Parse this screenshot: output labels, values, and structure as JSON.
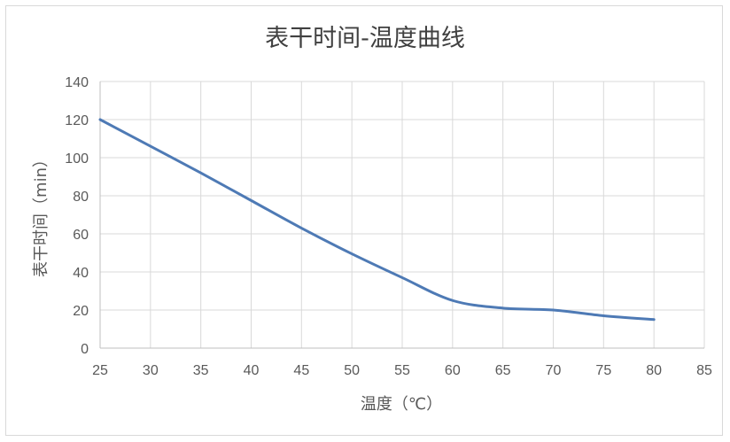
{
  "chart_data": {
    "type": "line",
    "title": "表干时间-温度曲线",
    "xlabel": "温度（℃）",
    "ylabel": "表干时间（min）",
    "xlim": [
      25,
      85
    ],
    "ylim": [
      0,
      140
    ],
    "x_ticks": [
      "25",
      "30",
      "35",
      "40",
      "45",
      "50",
      "55",
      "60",
      "65",
      "70",
      "75",
      "80",
      "85"
    ],
    "y_ticks": [
      "0",
      "20",
      "40",
      "60",
      "80",
      "100",
      "120",
      "140"
    ],
    "grid": true,
    "legend": "none",
    "series": [
      {
        "color": "#4e7ab5",
        "x": [
          25,
          30,
          35,
          40,
          45,
          50,
          55,
          60,
          65,
          70,
          75,
          80
        ],
        "y": [
          120,
          106,
          92,
          77.5,
          63,
          49.5,
          37,
          25,
          21,
          20,
          17,
          15
        ]
      }
    ]
  }
}
